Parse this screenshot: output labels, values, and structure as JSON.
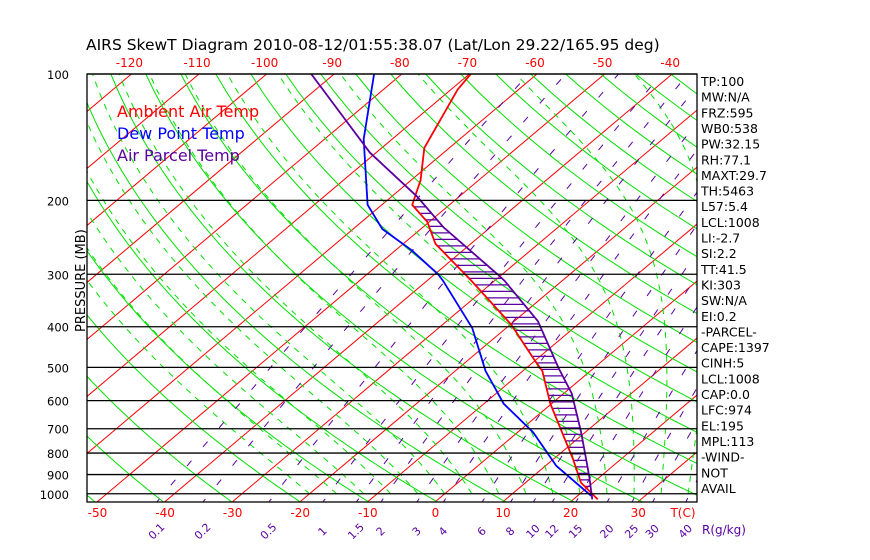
{
  "chart_data": {
    "type": "line",
    "title": "AIRS SkewT Diagram 2010-08-12/01:55:38.07 (Lat/Lon 29.22/165.95 deg)",
    "ylabel": "PRESSURE (MB)",
    "xlabel": "T(C)",
    "mixing_ratio_label": "R(g/kg)",
    "ylim": [
      1050,
      100
    ],
    "pressure_ticks": [
      100,
      200,
      300,
      400,
      500,
      600,
      700,
      800,
      900,
      1000
    ],
    "bottom_temp_ticks": [
      -50,
      -40,
      -30,
      -20,
      -10,
      0,
      10,
      20,
      30
    ],
    "top_temp_ticks": [
      -120,
      -110,
      -100,
      -90,
      -80,
      -70,
      -60,
      -50,
      -40
    ],
    "mixing_ratio_ticks": [
      "0.1",
      "0.2",
      "0.5",
      "1",
      "1.5",
      "2",
      "3",
      "4",
      "6",
      "8",
      "10",
      "12",
      "15",
      "20",
      "25",
      "30",
      "40"
    ],
    "legend": [
      {
        "label": "Ambient Air Temp",
        "color": "#ff0000"
      },
      {
        "label": "Dew Point Temp",
        "color": "#0000ff"
      },
      {
        "label": "Air Parcel Temp",
        "color": "#5a00a0"
      }
    ],
    "series": [
      {
        "name": "Ambient Air Temp",
        "color": "#ff0000",
        "p": [
          100,
          109,
          150,
          179,
          205,
          225,
          254,
          311,
          395,
          481,
          510,
          610,
          827,
          941,
          1031
        ],
        "t": [
          -69.8,
          -69.0,
          -63.7,
          -58.6,
          -55.5,
          -50.3,
          -45.2,
          -33.4,
          -19.9,
          -10.1,
          -7.1,
          -0.2,
          12.9,
          18.2,
          23.6
        ]
      },
      {
        "name": "Dew Point Temp",
        "color": "#0000ff",
        "p": [
          100,
          143,
          205,
          234,
          263,
          300,
          311,
          403,
          510,
          610,
          714,
          858,
          1011
        ],
        "t": [
          -84.1,
          -74.2,
          -62.1,
          -55.7,
          -47.6,
          -39.5,
          -37.6,
          -25.0,
          -15.5,
          -7.1,
          2.3,
          11.6,
          22.0
        ]
      },
      {
        "name": "Air Parcel Temp",
        "color": "#5a00a0",
        "p": [
          100,
          154,
          196,
          232,
          300,
          311,
          388,
          502,
          577,
          714,
          906,
          1031
        ],
        "t": [
          -93.4,
          -70.9,
          -56.2,
          -46.9,
          -30.7,
          -28.5,
          -16.5,
          -5.2,
          1.2,
          9.4,
          18.2,
          22.8
        ]
      }
    ],
    "grid": true
  },
  "indices": [
    "TP:100",
    "MW:N/A",
    "FRZ:595",
    "WB0:538",
    "PW:32.15",
    "RH:77.1",
    "MAXT:29.7",
    "TH:5463",
    "L57:5.4",
    "LCL:1008",
    "LI:-2.7",
    "SI:2.2",
    "TT:41.5",
    "KI:303",
    "SW:N/A",
    "EI:0.2",
    "-PARCEL-",
    "CAPE:1397",
    "CINH:5",
    "LCL:1008",
    "CAP:0.0",
    "LFC:974",
    "EL:195",
    "MPL:113",
    "-WIND-",
    "NOT",
    "AVAIL"
  ],
  "colors": {
    "isotherm": "#ff0000",
    "adiabat": "#00e000",
    "mixing": "#5a00a0",
    "isobar": "#000000"
  }
}
